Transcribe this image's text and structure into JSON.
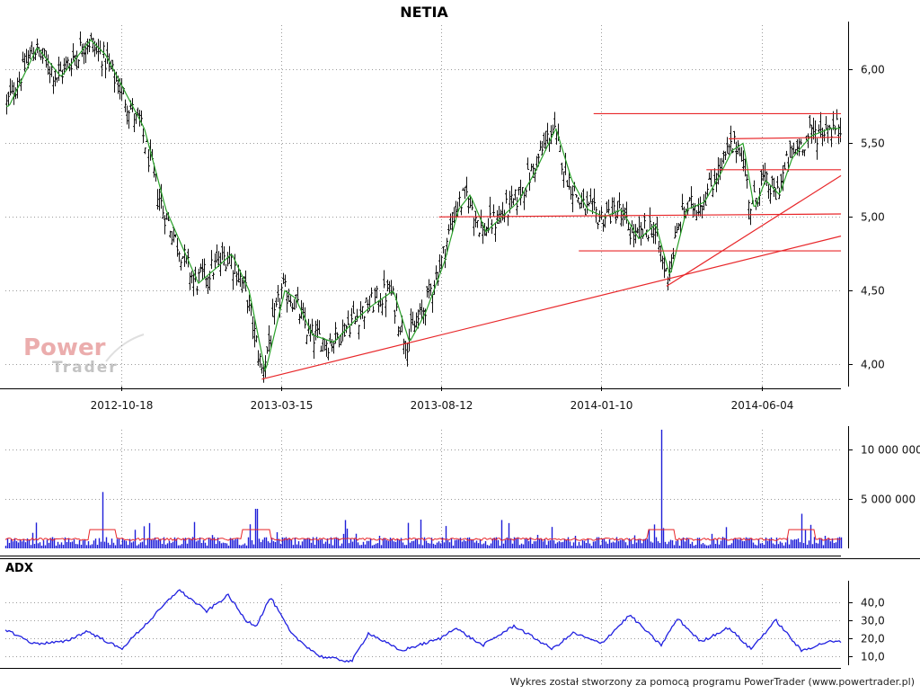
{
  "chart_data": [
    {
      "type": "candlestick",
      "title": "NETIA",
      "x_tick_labels": [
        "2012-10-18",
        "2013-03-15",
        "2013-08-12",
        "2014-01-10",
        "2014-06-04"
      ],
      "y_tick_labels": [
        "4,00",
        "4,50",
        "5,00",
        "5,50",
        "6,00"
      ],
      "ylim": [
        3.85,
        6.3
      ],
      "grid": true,
      "series": [
        {
          "values": [
            [
              "2012-08-01",
              5.75
            ],
            [
              "2012-08-20",
              6.15
            ],
            [
              "2012-09-05",
              5.95
            ],
            [
              "2012-09-25",
              6.2
            ],
            [
              "2012-10-05",
              6.1
            ],
            [
              "2012-10-18",
              5.85
            ],
            [
              "2012-11-05",
              5.6
            ],
            [
              "2012-11-25",
              5.05
            ],
            [
              "2012-12-10",
              4.8
            ],
            [
              "2012-12-25",
              4.55
            ],
            [
              "2013-01-10",
              4.65
            ],
            [
              "2013-01-25",
              4.75
            ],
            [
              "2013-02-10",
              4.5
            ],
            [
              "2013-02-25",
              3.95
            ],
            [
              "2013-03-15",
              4.5
            ],
            [
              "2013-03-25",
              4.45
            ],
            [
              "2013-04-10",
              4.2
            ],
            [
              "2013-04-30",
              4.15
            ],
            [
              "2013-05-20",
              4.3
            ],
            [
              "2013-06-05",
              4.4
            ],
            [
              "2013-06-25",
              4.5
            ],
            [
              "2013-07-10",
              4.15
            ],
            [
              "2013-07-25",
              4.35
            ],
            [
              "2013-08-12",
              4.7
            ],
            [
              "2013-08-25",
              5.05
            ],
            [
              "2013-09-05",
              5.15
            ],
            [
              "2013-09-20",
              4.9
            ],
            [
              "2013-10-05",
              5.0
            ],
            [
              "2013-10-20",
              5.1
            ],
            [
              "2013-11-05",
              5.3
            ],
            [
              "2013-11-25",
              5.6
            ],
            [
              "2013-12-10",
              5.25
            ],
            [
              "2013-12-25",
              5.05
            ],
            [
              "2014-01-10",
              5.0
            ],
            [
              "2014-01-25",
              5.05
            ],
            [
              "2014-02-10",
              4.85
            ],
            [
              "2014-02-25",
              4.95
            ],
            [
              "2014-03-10",
              4.6
            ],
            [
              "2014-03-25",
              5.05
            ],
            [
              "2014-04-10",
              5.1
            ],
            [
              "2014-04-25",
              5.3
            ],
            [
              "2014-05-05",
              5.45
            ],
            [
              "2014-05-15",
              5.5
            ],
            [
              "2014-05-25",
              5.05
            ],
            [
              "2014-06-04",
              5.25
            ],
            [
              "2014-06-15",
              5.15
            ],
            [
              "2014-06-25",
              5.4
            ],
            [
              "2014-07-10",
              5.55
            ],
            [
              "2014-07-25",
              5.6
            ]
          ]
        }
      ],
      "trend_lines": [
        {
          "start": [
            "2014-01-03",
            5.7
          ],
          "end": [
            "2014-08-05",
            5.7
          ],
          "color": "#e8272a"
        },
        {
          "start": [
            "2014-05-05",
            5.53
          ],
          "end": [
            "2014-08-05",
            5.54
          ],
          "color": "#e8272a"
        },
        {
          "start": [
            "2014-04-15",
            5.32
          ],
          "end": [
            "2014-08-05",
            5.32
          ],
          "color": "#e8272a"
        },
        {
          "start": [
            "2013-08-10",
            5.0
          ],
          "end": [
            "2014-08-05",
            5.02
          ],
          "color": "#e8272a"
        },
        {
          "start": [
            "2013-12-20",
            4.77
          ],
          "end": [
            "2014-08-05",
            4.77
          ],
          "color": "#e8272a"
        },
        {
          "start": [
            "2013-02-25",
            3.9
          ],
          "end": [
            "2014-08-05",
            4.87
          ],
          "color": "#e8272a"
        },
        {
          "start": [
            "2014-03-10",
            4.53
          ],
          "end": [
            "2014-08-05",
            5.28
          ],
          "color": "#e8272a"
        }
      ]
    },
    {
      "type": "bar",
      "y_tick_labels": [
        "5 000 000",
        "10 000 000"
      ],
      "ylim": [
        0,
        12000000
      ],
      "grid": true,
      "series": [
        {
          "values": [
            [
              "2012-10-05",
              5700000
            ],
            [
              "2013-02-20",
              4000000
            ],
            [
              "2014-03-05",
              12000000
            ],
            [
              "2014-07-05",
              3500000
            ]
          ]
        }
      ]
    },
    {
      "type": "line",
      "title": "ADX",
      "y_tick_labels": [
        "10,0",
        "20,0",
        "30,0",
        "40,0"
      ],
      "ylim": [
        5,
        50
      ],
      "grid": true,
      "series": [
        {
          "values": [
            [
              "2012-08-01",
              25
            ],
            [
              "2012-08-20",
              17
            ],
            [
              "2012-09-10",
              18
            ],
            [
              "2012-09-25",
              24
            ],
            [
              "2012-10-18",
              14
            ],
            [
              "2012-11-15",
              31
            ],
            [
              "2012-12-10",
              47
            ],
            [
              "2013-01-05",
              35
            ],
            [
              "2013-01-25",
              44
            ],
            [
              "2013-02-10",
              30
            ],
            [
              "2013-02-20",
              27
            ],
            [
              "2013-03-05",
              43
            ],
            [
              "2013-03-25",
              22
            ],
            [
              "2013-04-20",
              10
            ],
            [
              "2013-05-20",
              7
            ],
            [
              "2013-06-05",
              23
            ],
            [
              "2013-07-05",
              13
            ],
            [
              "2013-08-12",
              20
            ],
            [
              "2013-08-25",
              26
            ],
            [
              "2013-09-20",
              16
            ],
            [
              "2013-10-20",
              27
            ],
            [
              "2013-11-25",
              14
            ],
            [
              "2013-12-15",
              23
            ],
            [
              "2014-01-10",
              17
            ],
            [
              "2014-02-05",
              33
            ],
            [
              "2014-03-05",
              16
            ],
            [
              "2014-03-20",
              31
            ],
            [
              "2014-04-10",
              18
            ],
            [
              "2014-05-05",
              26
            ],
            [
              "2014-05-25",
              14
            ],
            [
              "2014-06-15",
              30
            ],
            [
              "2014-07-05",
              13
            ],
            [
              "2014-07-25",
              18
            ]
          ]
        }
      ]
    }
  ],
  "watermark": {
    "line1": "Power",
    "line2": "Trader"
  },
  "footer": "Wykres został stworzony za pomocą programu PowerTrader (www.powertrader.pl)",
  "colors": {
    "candles": "#111111",
    "moving_average": "#2aa12a",
    "trend_lines": "#e8272a",
    "volume": "#1f1fd8",
    "volume_average": "#e8272a",
    "adx": "#2020e0",
    "grid": "#9a9a9a"
  }
}
